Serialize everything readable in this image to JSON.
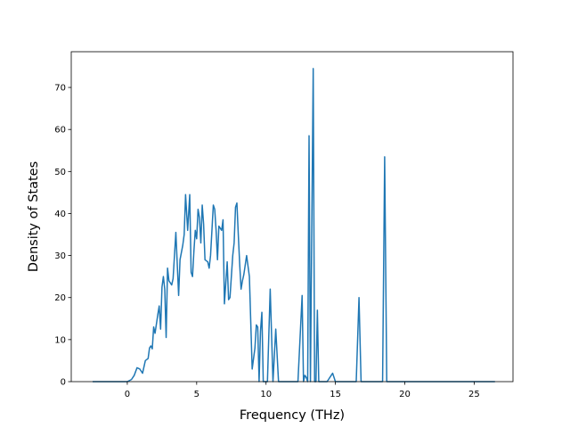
{
  "chart_data": {
    "type": "line",
    "title": "",
    "xlabel": "Frequency (THz)",
    "ylabel": "Density of States",
    "xlim": [
      -4.04,
      27.8
    ],
    "ylim": [
      0,
      78.5
    ],
    "xticks": [
      0,
      5,
      10,
      15,
      20,
      25
    ],
    "yticks": [
      0,
      10,
      20,
      30,
      40,
      50,
      60,
      70
    ],
    "grid": false,
    "legend": "none",
    "series": [
      {
        "color": "#1f77b4",
        "x": [
          -2.5,
          -2.0,
          -1.5,
          -1.0,
          -0.5,
          0.0,
          0.3,
          0.5,
          0.7,
          0.9,
          1.1,
          1.3,
          1.5,
          1.6,
          1.7,
          1.8,
          1.9,
          2.0,
          2.2,
          2.3,
          2.4,
          2.5,
          2.6,
          2.7,
          2.8,
          2.9,
          3.0,
          3.2,
          3.3,
          3.5,
          3.7,
          3.8,
          4.0,
          4.1,
          4.2,
          4.35,
          4.5,
          4.6,
          4.7,
          4.8,
          4.9,
          5.0,
          5.1,
          5.2,
          5.3,
          5.4,
          5.5,
          5.6,
          5.8,
          5.9,
          6.0,
          6.2,
          6.3,
          6.4,
          6.5,
          6.6,
          6.8,
          6.9,
          7.0,
          7.2,
          7.3,
          7.4,
          7.5,
          7.6,
          7.7,
          7.8,
          7.9,
          8.0,
          8.1,
          8.2,
          8.3,
          8.4,
          8.6,
          8.8,
          9.0,
          9.2,
          9.3,
          9.4,
          9.5,
          9.6,
          9.7,
          9.8,
          9.9,
          10.0,
          10.1,
          10.3,
          10.5,
          10.7,
          10.9,
          11.1,
          11.3,
          11.4,
          11.6,
          11.8,
          12.0,
          12.3,
          12.6,
          12.7,
          12.8,
          12.9,
          13.0,
          13.1,
          13.2,
          13.4,
          13.5,
          13.6,
          13.7,
          13.8,
          13.9,
          14.0,
          14.1,
          14.2,
          14.4,
          14.8,
          15.0,
          15.2,
          15.5,
          16.0,
          16.5,
          16.7,
          16.85,
          17.0,
          17.5,
          18.0,
          18.2,
          18.4,
          18.55,
          18.7,
          19.0,
          20.0,
          21.0,
          22.0,
          23.0,
          24.0,
          25.0,
          26.0,
          26.5
        ],
        "y": [
          0,
          0,
          0,
          0,
          0,
          0,
          0.5,
          1.5,
          3.3,
          3.0,
          2.0,
          5.0,
          5.5,
          8.0,
          8.5,
          7.8,
          13.0,
          11.5,
          16.0,
          18.0,
          12.5,
          22.5,
          25.0,
          22.0,
          10.5,
          27.0,
          24.0,
          23.0,
          24.5,
          35.5,
          20.5,
          29.0,
          32.5,
          35.0,
          44.5,
          36.0,
          44.5,
          26.0,
          25.0,
          31.0,
          36.0,
          34.0,
          41.0,
          39.0,
          33.0,
          42.0,
          37.5,
          29.0,
          28.5,
          27.0,
          30.0,
          42.0,
          41.0,
          36.0,
          29.0,
          37.0,
          36.0,
          38.5,
          18.5,
          28.5,
          19.5,
          20.0,
          25.0,
          30.0,
          33.0,
          41.5,
          42.5,
          35.0,
          28.0,
          22.0,
          24.0,
          25.5,
          30.0,
          25.0,
          3.0,
          8.0,
          13.5,
          13.0,
          0,
          12.0,
          16.5,
          0,
          0,
          0,
          0,
          22.0,
          0,
          12.5,
          0,
          0,
          0,
          0,
          0,
          0,
          0,
          0,
          20.5,
          0,
          1.5,
          1.0,
          0,
          58.5,
          0,
          74.5,
          0,
          0,
          17.0,
          0,
          0,
          0,
          0,
          0,
          0,
          2.0,
          0,
          0,
          0,
          0,
          0,
          20.0,
          0,
          0,
          0,
          0,
          0,
          0,
          53.5,
          0,
          0,
          0,
          0,
          0,
          0,
          0,
          0,
          0,
          0
        ]
      }
    ]
  }
}
